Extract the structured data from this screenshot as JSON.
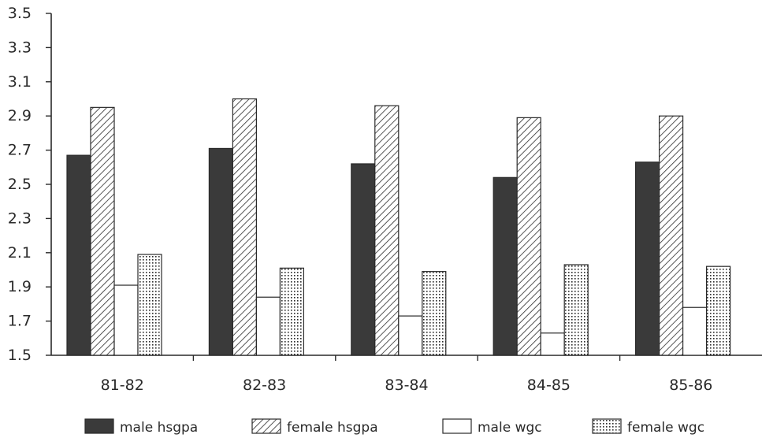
{
  "chart_data": {
    "type": "bar",
    "categories": [
      "81-82",
      "82-83",
      "83-84",
      "84-85",
      "85-86"
    ],
    "series": [
      {
        "name": "male hsgpa",
        "values": [
          2.67,
          2.71,
          2.62,
          2.54,
          2.63
        ],
        "fill": "solid",
        "color": "#3a3a3a"
      },
      {
        "name": "female hsgpa",
        "values": [
          2.95,
          3.0,
          2.96,
          2.89,
          2.9
        ],
        "fill": "hatch",
        "color": "#2a2a2a"
      },
      {
        "name": "male wgc",
        "values": [
          1.91,
          1.84,
          1.73,
          1.63,
          1.78
        ],
        "fill": "empty",
        "color": "#2a2a2a"
      },
      {
        "name": "female wgc",
        "values": [
          2.09,
          2.01,
          1.99,
          2.03,
          2.02
        ],
        "fill": "dotted",
        "color": "#2a2a2a"
      }
    ],
    "y_ticks": [
      "1.5",
      "1.7",
      "1.9",
      "2.1",
      "2.3",
      "2.5",
      "2.7",
      "2.9",
      "3.1",
      "3.3",
      "3.5"
    ],
    "ylim": [
      1.5,
      3.5
    ],
    "title": "",
    "xlabel": "",
    "ylabel": "",
    "grid": false,
    "legend_position": "bottom"
  }
}
